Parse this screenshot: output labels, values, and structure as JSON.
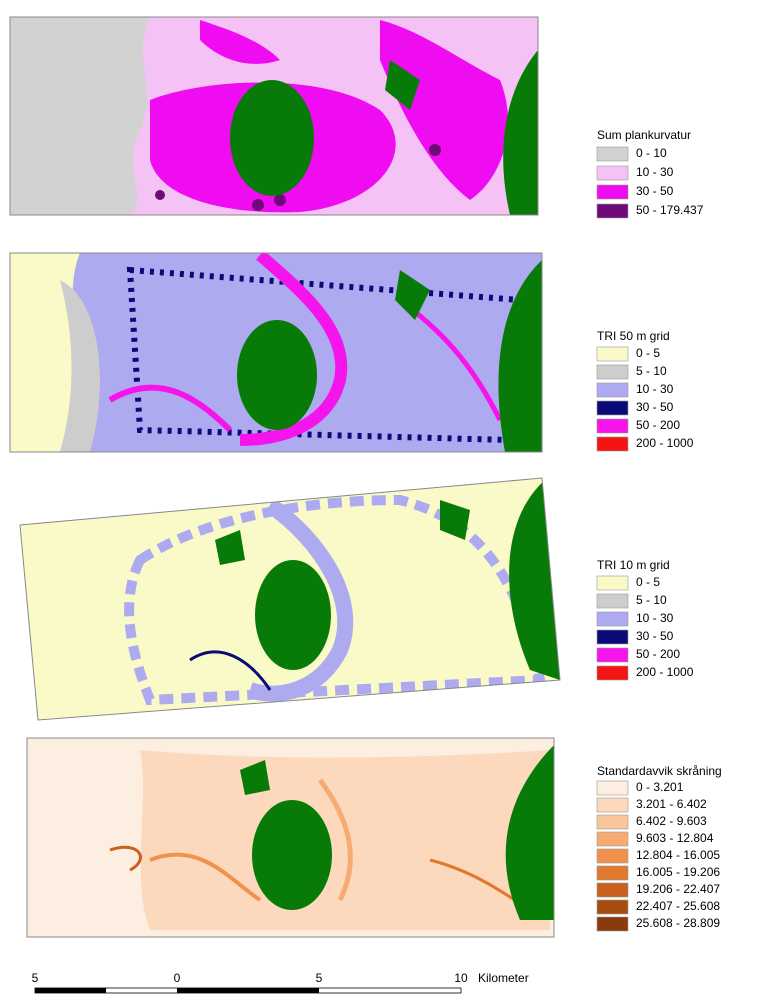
{
  "panels": [
    {
      "legend": {
        "title": "Sum plankurvatur",
        "items": [
          {
            "label": "0 - 10",
            "color": "#d2d2d2"
          },
          {
            "label": "10 - 30",
            "color": "#f5c2f5"
          },
          {
            "label": "30 - 50",
            "color": "#f00cf0"
          },
          {
            "label": "50 - 179.437",
            "color": "#6e0a78"
          }
        ]
      }
    },
    {
      "legend": {
        "title": "TRI 50 m grid",
        "items": [
          {
            "label": "0 - 5",
            "color": "#fafac8"
          },
          {
            "label": "5 - 10",
            "color": "#cdcdcd"
          },
          {
            "label": "10 - 30",
            "color": "#aeaaf0"
          },
          {
            "label": "30 - 50",
            "color": "#0a0a78"
          },
          {
            "label": "50 - 200",
            "color": "#f514eb"
          },
          {
            "label": "200 - 1000",
            "color": "#f51414"
          }
        ]
      }
    },
    {
      "legend": {
        "title": "TRI 10 m grid",
        "items": [
          {
            "label": "0 - 5",
            "color": "#fafac8"
          },
          {
            "label": "5 - 10",
            "color": "#cdcdcd"
          },
          {
            "label": "10 - 30",
            "color": "#aeaaf0"
          },
          {
            "label": "30 - 50",
            "color": "#0a0a78"
          },
          {
            "label": "50 - 200",
            "color": "#f514eb"
          },
          {
            "label": "200 - 1000",
            "color": "#f51414"
          }
        ]
      }
    },
    {
      "legend": {
        "title": "Standardavvik skråning",
        "items": [
          {
            "label": "0 - 3.201",
            "color": "#fdeee2"
          },
          {
            "label": "3.201 - 6.402",
            "color": "#fcd9bd"
          },
          {
            "label": "6.402 - 9.603",
            "color": "#fac49a"
          },
          {
            "label": "9.603 - 12.804",
            "color": "#f7ab72"
          },
          {
            "label": "12.804 - 16.005",
            "color": "#f0914c"
          },
          {
            "label": "16.005 - 19.206",
            "color": "#e0782d"
          },
          {
            "label": "19.206 - 22.407",
            "color": "#c9611c"
          },
          {
            "label": "22.407 - 25.608",
            "color": "#a84d12"
          },
          {
            "label": "25.608 - 28.809",
            "color": "#8a3b0c"
          }
        ]
      }
    }
  ],
  "scale_bar": {
    "labels": [
      "5",
      "0",
      "5",
      "10"
    ],
    "unit": "Kilometer"
  }
}
